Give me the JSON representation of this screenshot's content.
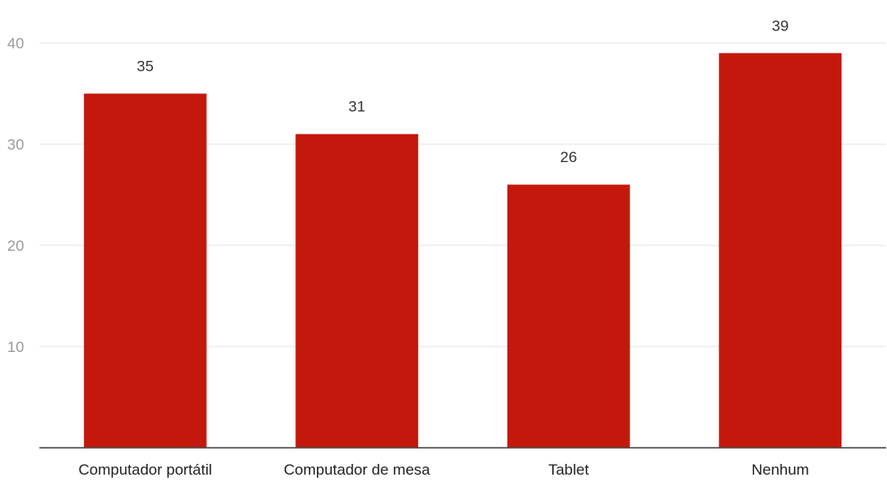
{
  "chart_data": {
    "type": "bar",
    "categories": [
      "Computador portátil",
      "Computador de mesa",
      "Tablet",
      "Nenhum"
    ],
    "values": [
      35,
      31,
      26,
      39
    ],
    "title": "",
    "xlabel": "",
    "ylabel": "",
    "ylim": [
      0,
      40
    ],
    "yticks": [
      10,
      20,
      30,
      40
    ],
    "grid": true,
    "bar_color": "#c4180c",
    "data_labels": true
  }
}
